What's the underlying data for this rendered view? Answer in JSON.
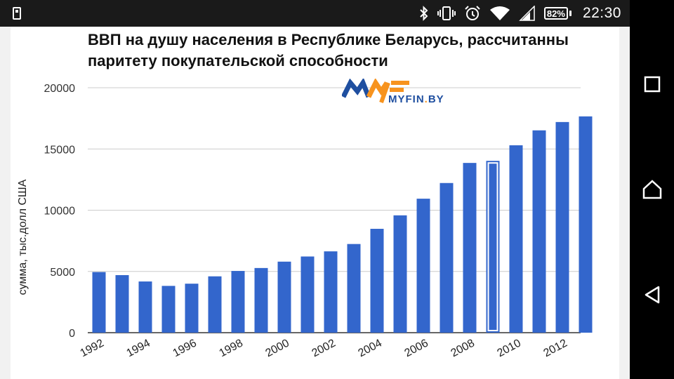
{
  "status_bar": {
    "battery": "82%",
    "time": "22:30",
    "icons": [
      "usb-icon",
      "bluetooth-icon",
      "vibrate-icon",
      "alarm-icon",
      "wifi-icon",
      "signal-icon",
      "battery-icon"
    ]
  },
  "logo": {
    "text_main": "MYFIN",
    "text_dot": ".",
    "text_tld": "BY",
    "colors": {
      "blue": "#1f4fa0",
      "orange": "#f7931e"
    }
  },
  "nav_bar": {
    "icons": [
      "recent-apps-icon",
      "home-icon",
      "back-icon"
    ]
  },
  "chart_data": {
    "type": "bar",
    "title": "ВВП на душу населения в Республике Беларусь, рассчитанны паритету покупательской способности",
    "title_lines": [
      "ВВП на душу населения в Республике Беларусь, рассчитанны",
      "паритету покупательской способности"
    ],
    "xlabel": "",
    "ylabel": "сумма, тыс.долл США",
    "categories": [
      "1992",
      "1993",
      "1994",
      "1995",
      "1996",
      "1997",
      "1998",
      "1999",
      "2000",
      "2001",
      "2002",
      "2003",
      "2004",
      "2005",
      "2006",
      "2007",
      "2008",
      "2009",
      "2010",
      "2011",
      "2012",
      "2013"
    ],
    "values": [
      4950,
      4700,
      4180,
      3820,
      4000,
      4600,
      5040,
      5280,
      5800,
      6220,
      6640,
      7240,
      8480,
      9580,
      10940,
      12220,
      13860,
      14030,
      15300,
      16520,
      17200,
      17660
    ],
    "x_tick_labels": [
      "1992",
      "1994",
      "1996",
      "1998",
      "2000",
      "2002",
      "2004",
      "2006",
      "2008",
      "2010",
      "2012"
    ],
    "y_ticks": [
      0,
      5000,
      10000,
      15000,
      20000
    ],
    "ylim": [
      0,
      20000
    ],
    "highlighted_category": "2009",
    "bar_color": "#3366cc",
    "grid": true,
    "legend": "none"
  }
}
